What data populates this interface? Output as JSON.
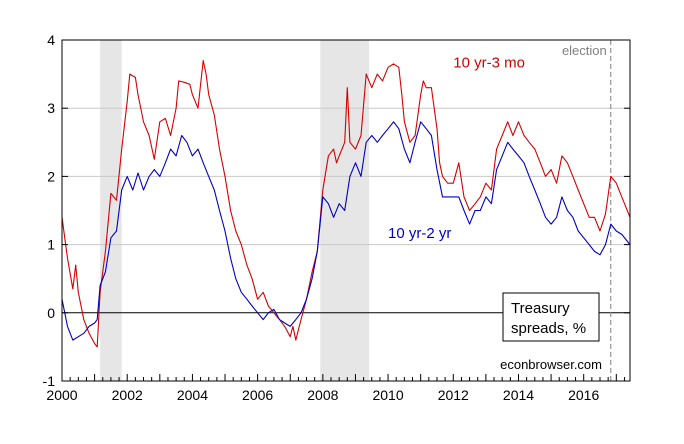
{
  "chart_data": {
    "type": "line",
    "x_unit": "year",
    "xlim": [
      2000.0,
      2017.42
    ],
    "ylim": [
      -1,
      4
    ],
    "x_ticks": [
      {
        "value": 2000,
        "label": "2000"
      },
      {
        "value": 2002,
        "label": "2002"
      },
      {
        "value": 2004,
        "label": "2004"
      },
      {
        "value": 2006,
        "label": "2006"
      },
      {
        "value": 2008,
        "label": "2008"
      },
      {
        "value": 2010,
        "label": "2010"
      },
      {
        "value": 2012,
        "label": "2012"
      },
      {
        "value": 2014,
        "label": "2014"
      },
      {
        "value": 2016,
        "label": "2016"
      }
    ],
    "y_ticks": [
      {
        "value": -1,
        "label": "-1"
      },
      {
        "value": 0,
        "label": "0"
      },
      {
        "value": 1,
        "label": "1"
      },
      {
        "value": 2,
        "label": "2"
      },
      {
        "value": 3,
        "label": "3"
      },
      {
        "value": 4,
        "label": "4"
      }
    ],
    "grid": "horizontal",
    "recession_bands": [
      [
        2001.17,
        2001.83
      ],
      [
        2007.92,
        2009.42
      ]
    ],
    "vline": {
      "x": 2016.83,
      "label": "election",
      "color": "#808080"
    },
    "zero_line": 0,
    "annotation_box": {
      "lines": [
        "Treasury",
        "spreads, %"
      ]
    },
    "source": "econbrowser.com",
    "series": [
      {
        "name": "10 yr-3 mo",
        "color": "#d40000",
        "points": [
          [
            2000.0,
            1.4
          ],
          [
            2000.17,
            0.8
          ],
          [
            2000.33,
            0.35
          ],
          [
            2000.42,
            0.7
          ],
          [
            2000.5,
            0.3
          ],
          [
            2000.67,
            -0.1
          ],
          [
            2000.83,
            -0.3
          ],
          [
            2001.0,
            -0.45
          ],
          [
            2001.08,
            -0.5
          ],
          [
            2001.17,
            0.3
          ],
          [
            2001.33,
            0.9
          ],
          [
            2001.5,
            1.75
          ],
          [
            2001.67,
            1.65
          ],
          [
            2001.83,
            2.4
          ],
          [
            2002.0,
            3.1
          ],
          [
            2002.08,
            3.5
          ],
          [
            2002.25,
            3.45
          ],
          [
            2002.33,
            3.2
          ],
          [
            2002.5,
            2.8
          ],
          [
            2002.67,
            2.6
          ],
          [
            2002.83,
            2.25
          ],
          [
            2003.0,
            2.8
          ],
          [
            2003.17,
            2.85
          ],
          [
            2003.33,
            2.6
          ],
          [
            2003.5,
            3.0
          ],
          [
            2003.58,
            3.4
          ],
          [
            2003.75,
            3.38
          ],
          [
            2003.92,
            3.35
          ],
          [
            2004.0,
            3.2
          ],
          [
            2004.17,
            3.0
          ],
          [
            2004.33,
            3.7
          ],
          [
            2004.42,
            3.5
          ],
          [
            2004.5,
            3.2
          ],
          [
            2004.67,
            2.9
          ],
          [
            2004.83,
            2.4
          ],
          [
            2005.0,
            2.0
          ],
          [
            2005.17,
            1.5
          ],
          [
            2005.33,
            1.2
          ],
          [
            2005.5,
            1.0
          ],
          [
            2005.67,
            0.7
          ],
          [
            2005.83,
            0.5
          ],
          [
            2006.0,
            0.2
          ],
          [
            2006.17,
            0.3
          ],
          [
            2006.33,
            0.1
          ],
          [
            2006.5,
            0.0
          ],
          [
            2006.67,
            -0.1
          ],
          [
            2006.83,
            -0.2
          ],
          [
            2007.0,
            -0.35
          ],
          [
            2007.08,
            -0.2
          ],
          [
            2007.17,
            -0.4
          ],
          [
            2007.33,
            -0.1
          ],
          [
            2007.5,
            0.2
          ],
          [
            2007.67,
            0.6
          ],
          [
            2007.83,
            0.9
          ],
          [
            2008.0,
            1.8
          ],
          [
            2008.17,
            2.3
          ],
          [
            2008.33,
            2.4
          ],
          [
            2008.42,
            2.2
          ],
          [
            2008.5,
            2.3
          ],
          [
            2008.67,
            2.5
          ],
          [
            2008.75,
            3.3
          ],
          [
            2008.83,
            2.5
          ],
          [
            2009.0,
            2.4
          ],
          [
            2009.17,
            2.6
          ],
          [
            2009.33,
            3.5
          ],
          [
            2009.5,
            3.3
          ],
          [
            2009.67,
            3.5
          ],
          [
            2009.83,
            3.4
          ],
          [
            2010.0,
            3.6
          ],
          [
            2010.17,
            3.65
          ],
          [
            2010.33,
            3.6
          ],
          [
            2010.42,
            3.2
          ],
          [
            2010.5,
            2.8
          ],
          [
            2010.67,
            2.5
          ],
          [
            2010.83,
            2.6
          ],
          [
            2011.0,
            3.2
          ],
          [
            2011.08,
            3.4
          ],
          [
            2011.17,
            3.3
          ],
          [
            2011.33,
            3.3
          ],
          [
            2011.5,
            2.7
          ],
          [
            2011.58,
            2.2
          ],
          [
            2011.67,
            2.0
          ],
          [
            2011.83,
            1.9
          ],
          [
            2012.0,
            1.9
          ],
          [
            2012.17,
            2.2
          ],
          [
            2012.33,
            1.7
          ],
          [
            2012.5,
            1.5
          ],
          [
            2012.67,
            1.6
          ],
          [
            2012.83,
            1.7
          ],
          [
            2013.0,
            1.9
          ],
          [
            2013.17,
            1.8
          ],
          [
            2013.33,
            2.4
          ],
          [
            2013.5,
            2.6
          ],
          [
            2013.67,
            2.8
          ],
          [
            2013.83,
            2.6
          ],
          [
            2014.0,
            2.8
          ],
          [
            2014.17,
            2.6
          ],
          [
            2014.33,
            2.5
          ],
          [
            2014.5,
            2.4
          ],
          [
            2014.67,
            2.2
          ],
          [
            2014.83,
            2.0
          ],
          [
            2015.0,
            2.1
          ],
          [
            2015.17,
            1.9
          ],
          [
            2015.33,
            2.3
          ],
          [
            2015.5,
            2.2
          ],
          [
            2015.67,
            2.0
          ],
          [
            2015.83,
            1.8
          ],
          [
            2016.0,
            1.6
          ],
          [
            2016.17,
            1.4
          ],
          [
            2016.33,
            1.4
          ],
          [
            2016.5,
            1.2
          ],
          [
            2016.67,
            1.45
          ],
          [
            2016.83,
            2.0
          ],
          [
            2017.0,
            1.9
          ],
          [
            2017.17,
            1.7
          ],
          [
            2017.42,
            1.4
          ]
        ]
      },
      {
        "name": "10 yr-2 yr",
        "color": "#0000c8",
        "points": [
          [
            2000.0,
            0.2
          ],
          [
            2000.17,
            -0.2
          ],
          [
            2000.33,
            -0.4
          ],
          [
            2000.5,
            -0.35
          ],
          [
            2000.67,
            -0.3
          ],
          [
            2000.83,
            -0.2
          ],
          [
            2001.0,
            -0.15
          ],
          [
            2001.08,
            -0.1
          ],
          [
            2001.17,
            0.4
          ],
          [
            2001.33,
            0.6
          ],
          [
            2001.5,
            1.1
          ],
          [
            2001.67,
            1.2
          ],
          [
            2001.83,
            1.8
          ],
          [
            2002.0,
            2.0
          ],
          [
            2002.17,
            1.8
          ],
          [
            2002.33,
            2.05
          ],
          [
            2002.5,
            1.8
          ],
          [
            2002.67,
            2.0
          ],
          [
            2002.83,
            2.1
          ],
          [
            2003.0,
            2.0
          ],
          [
            2003.17,
            2.2
          ],
          [
            2003.33,
            2.4
          ],
          [
            2003.5,
            2.3
          ],
          [
            2003.67,
            2.6
          ],
          [
            2003.83,
            2.5
          ],
          [
            2004.0,
            2.3
          ],
          [
            2004.17,
            2.4
          ],
          [
            2004.33,
            2.2
          ],
          [
            2004.5,
            2.0
          ],
          [
            2004.67,
            1.8
          ],
          [
            2004.83,
            1.5
          ],
          [
            2005.0,
            1.2
          ],
          [
            2005.17,
            0.8
          ],
          [
            2005.33,
            0.5
          ],
          [
            2005.5,
            0.3
          ],
          [
            2005.67,
            0.2
          ],
          [
            2005.83,
            0.1
          ],
          [
            2006.0,
            0.0
          ],
          [
            2006.17,
            -0.1
          ],
          [
            2006.33,
            0.0
          ],
          [
            2006.5,
            0.05
          ],
          [
            2006.67,
            -0.1
          ],
          [
            2006.83,
            -0.15
          ],
          [
            2007.0,
            -0.2
          ],
          [
            2007.17,
            -0.1
          ],
          [
            2007.33,
            0.0
          ],
          [
            2007.5,
            0.2
          ],
          [
            2007.67,
            0.5
          ],
          [
            2007.83,
            0.9
          ],
          [
            2008.0,
            1.7
          ],
          [
            2008.17,
            1.6
          ],
          [
            2008.33,
            1.4
          ],
          [
            2008.5,
            1.6
          ],
          [
            2008.67,
            1.5
          ],
          [
            2008.83,
            2.0
          ],
          [
            2009.0,
            2.2
          ],
          [
            2009.17,
            2.0
          ],
          [
            2009.33,
            2.5
          ],
          [
            2009.5,
            2.6
          ],
          [
            2009.67,
            2.5
          ],
          [
            2009.83,
            2.6
          ],
          [
            2010.0,
            2.7
          ],
          [
            2010.17,
            2.8
          ],
          [
            2010.33,
            2.7
          ],
          [
            2010.5,
            2.4
          ],
          [
            2010.67,
            2.2
          ],
          [
            2010.83,
            2.5
          ],
          [
            2011.0,
            2.8
          ],
          [
            2011.17,
            2.7
          ],
          [
            2011.33,
            2.6
          ],
          [
            2011.5,
            2.1
          ],
          [
            2011.67,
            1.7
          ],
          [
            2011.83,
            1.7
          ],
          [
            2012.0,
            1.7
          ],
          [
            2012.17,
            1.7
          ],
          [
            2012.33,
            1.5
          ],
          [
            2012.5,
            1.3
          ],
          [
            2012.67,
            1.5
          ],
          [
            2012.83,
            1.5
          ],
          [
            2013.0,
            1.7
          ],
          [
            2013.17,
            1.6
          ],
          [
            2013.33,
            2.1
          ],
          [
            2013.5,
            2.3
          ],
          [
            2013.67,
            2.5
          ],
          [
            2013.83,
            2.4
          ],
          [
            2014.0,
            2.3
          ],
          [
            2014.17,
            2.2
          ],
          [
            2014.33,
            2.0
          ],
          [
            2014.5,
            1.8
          ],
          [
            2014.67,
            1.6
          ],
          [
            2014.83,
            1.4
          ],
          [
            2015.0,
            1.3
          ],
          [
            2015.17,
            1.4
          ],
          [
            2015.33,
            1.7
          ],
          [
            2015.5,
            1.5
          ],
          [
            2015.67,
            1.4
          ],
          [
            2015.83,
            1.2
          ],
          [
            2016.0,
            1.1
          ],
          [
            2016.17,
            1.0
          ],
          [
            2016.33,
            0.9
          ],
          [
            2016.5,
            0.85
          ],
          [
            2016.67,
            1.0
          ],
          [
            2016.83,
            1.3
          ],
          [
            2017.0,
            1.2
          ],
          [
            2017.17,
            1.15
          ],
          [
            2017.42,
            1.0
          ]
        ]
      }
    ],
    "labels": [
      {
        "series": 0,
        "text": "10 yr-3 mo",
        "x": 2012.0,
        "y": 3.6
      },
      {
        "series": 1,
        "text": "10 yr-2 yr",
        "x": 2010.0,
        "y": 1.1
      }
    ]
  }
}
